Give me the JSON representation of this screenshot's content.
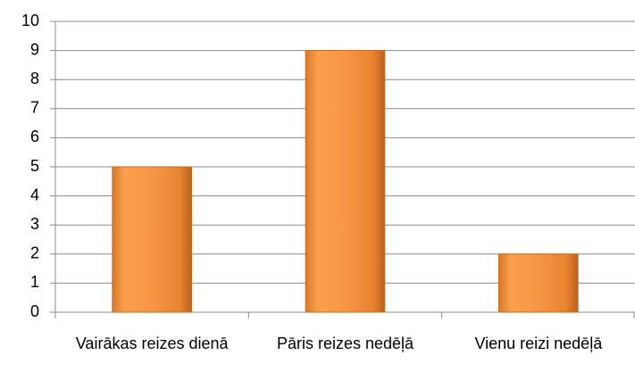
{
  "chart_data": {
    "type": "bar",
    "categories": [
      "Vairākas reizes dienā",
      "Pāris reizes nedēļā",
      "Vienu reizi nedēļā"
    ],
    "values": [
      5,
      9,
      2
    ],
    "color": "#f79646",
    "ylim": [
      0,
      10
    ],
    "yticks": [
      0,
      1,
      2,
      3,
      4,
      5,
      6,
      7,
      8,
      9,
      10
    ],
    "grid": true
  }
}
